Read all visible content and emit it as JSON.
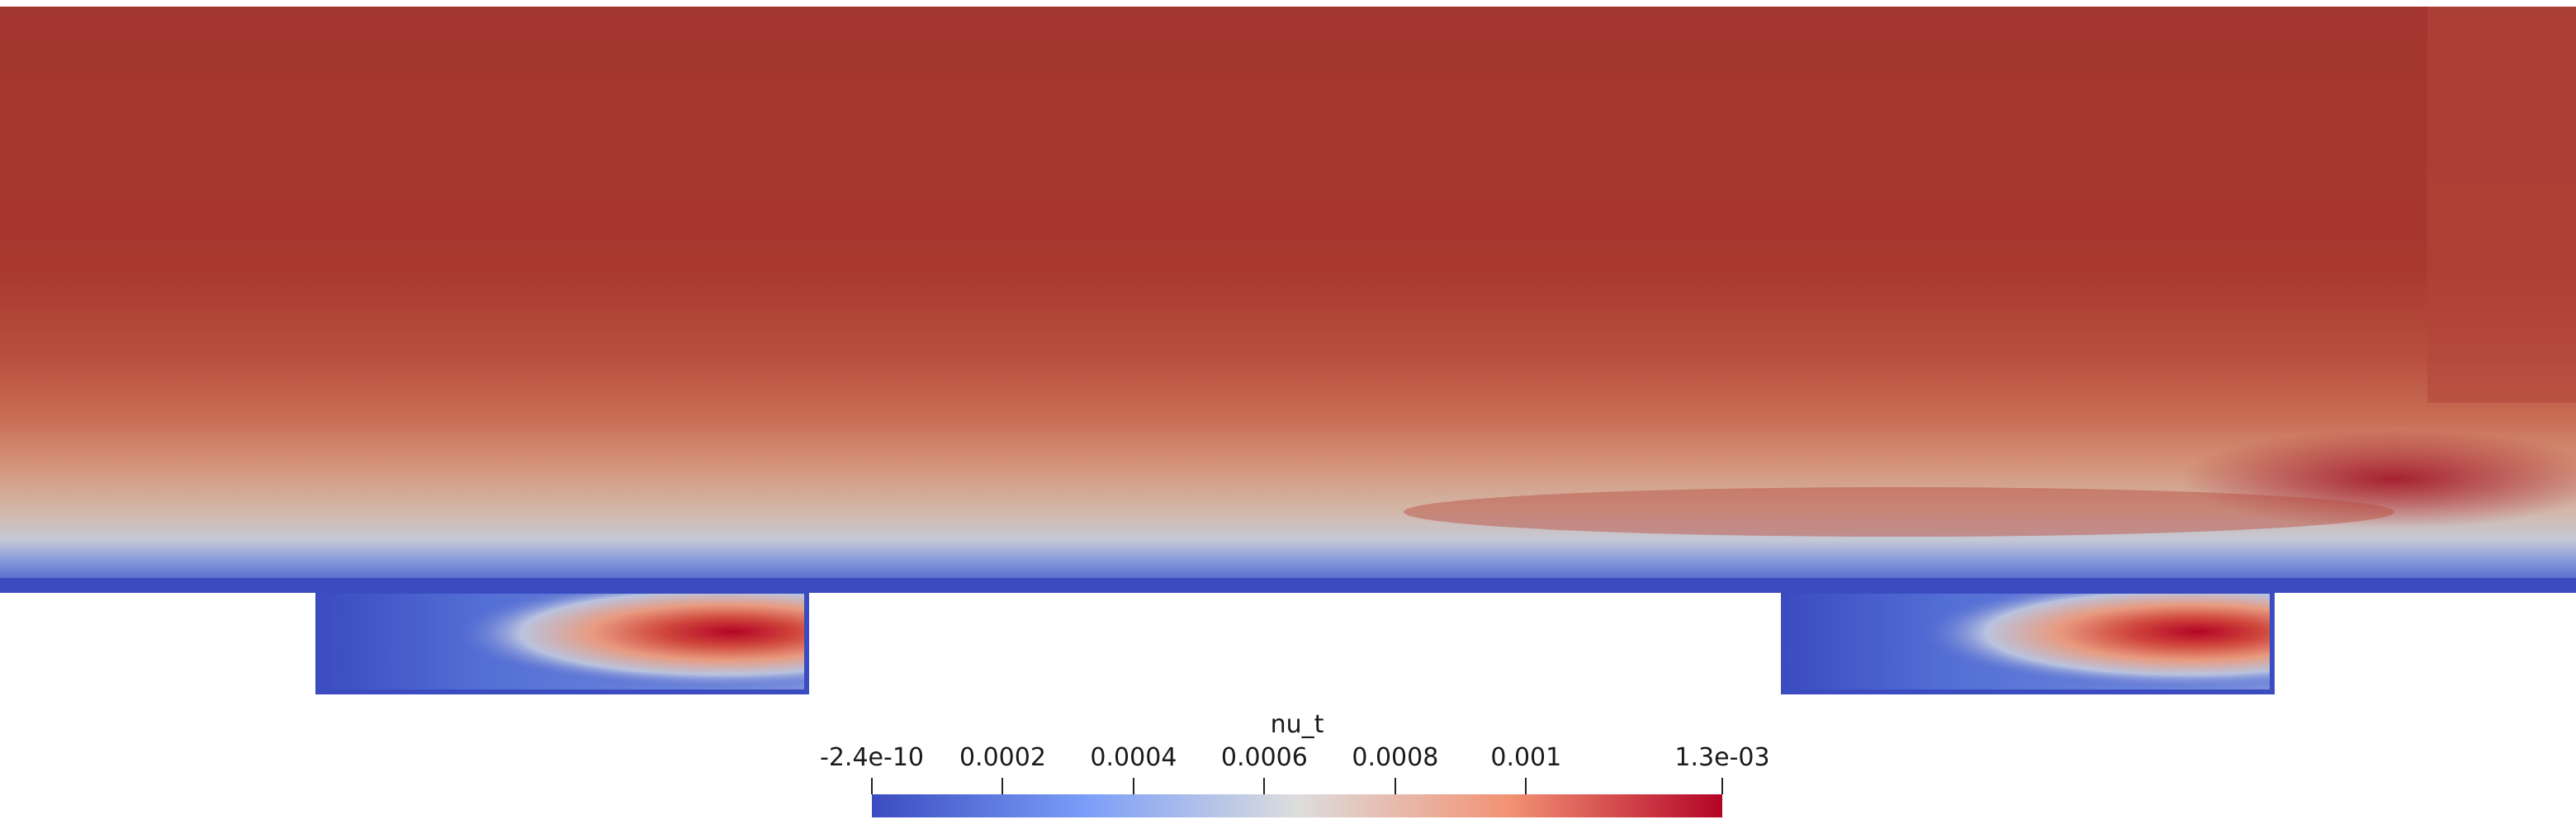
{
  "scene": {
    "type": "cfd-contour",
    "field": "nu_t",
    "colormap": "Cool to Warm",
    "colors": {
      "low": "#3b4cc0",
      "mid": "#dddddd",
      "high": "#b40426",
      "freestream": "#a73830",
      "background": "#ffffff"
    }
  },
  "colorbar": {
    "title": "nu_t",
    "range": [
      -2.4e-10,
      0.0013
    ],
    "ticks": [
      {
        "label": "-2.4e-10",
        "value": -2.4e-10
      },
      {
        "label": "0.0002",
        "value": 0.0002
      },
      {
        "label": "0.0004",
        "value": 0.0004
      },
      {
        "label": "0.0006",
        "value": 0.0006
      },
      {
        "label": "0.0008",
        "value": 0.0008
      },
      {
        "label": "0.001",
        "value": 0.001
      },
      {
        "label": "1.3e-03",
        "value": 0.0013
      }
    ]
  }
}
